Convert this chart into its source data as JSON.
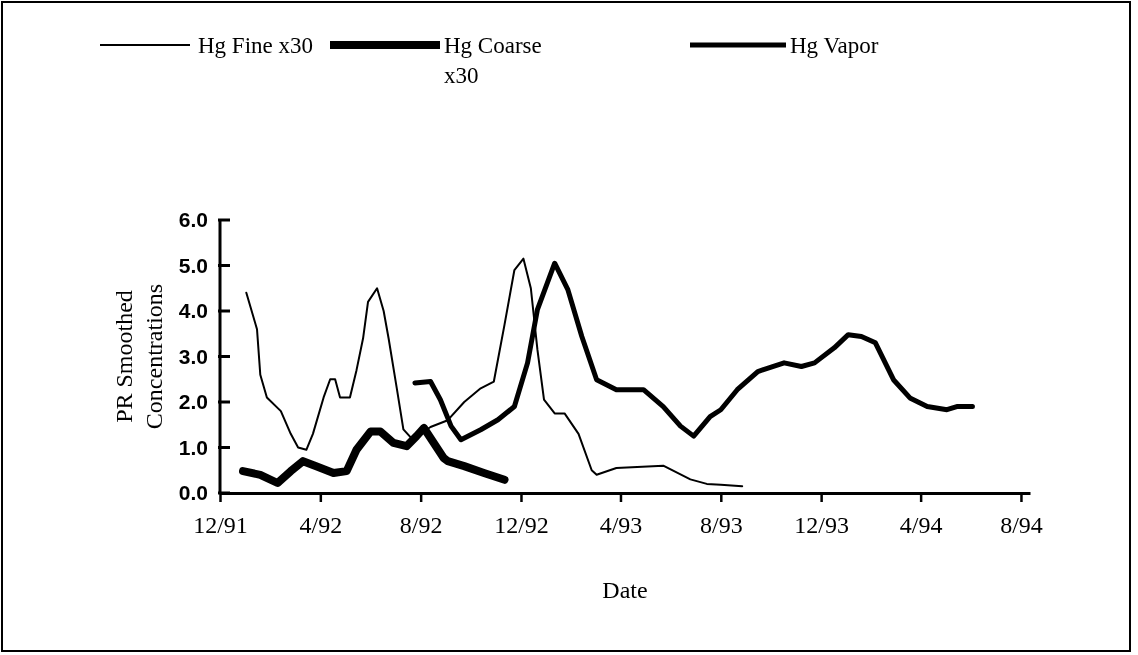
{
  "chart_data": {
    "type": "line",
    "xlabel": "Date",
    "ylabel": "PR Smoothed Concentrations",
    "xlim": [
      "1991-12-01",
      "1994-08-12"
    ],
    "xticks": [
      {
        "value": "1991-12-01",
        "label": "12/91"
      },
      {
        "value": "1992-04-01",
        "label": "4/92"
      },
      {
        "value": "1992-08-01",
        "label": "8/92"
      },
      {
        "value": "1992-12-01",
        "label": "12/92"
      },
      {
        "value": "1993-04-01",
        "label": "4/93"
      },
      {
        "value": "1993-08-01",
        "label": "8/93"
      },
      {
        "value": "1993-12-01",
        "label": "12/93"
      },
      {
        "value": "1994-04-01",
        "label": "4/94"
      },
      {
        "value": "1994-08-01",
        "label": "8/94"
      }
    ],
    "ylim": [
      0,
      6
    ],
    "yticks": [
      {
        "value": 0,
        "label": "0.0"
      },
      {
        "value": 1,
        "label": "1.0"
      },
      {
        "value": 2,
        "label": "2.0"
      },
      {
        "value": 3,
        "label": "3.0"
      },
      {
        "value": 4,
        "label": "4.0"
      },
      {
        "value": 5,
        "label": "5.0"
      },
      {
        "value": 6,
        "label": "6.0"
      }
    ],
    "grid": false,
    "legend": "top",
    "marker": "none",
    "line_style": "solid",
    "series": [
      {
        "name": "Hg Fine x30",
        "color": "#000000",
        "x": [
          "1992-01-02",
          "1992-01-15",
          "1992-01-19",
          "1992-01-27",
          "1992-02-13",
          "1992-02-25",
          "1992-03-05",
          "1992-03-15",
          "1992-03-23",
          "1992-04-05",
          "1992-04-13",
          "1992-04-19",
          "1992-04-25",
          "1992-05-07",
          "1992-05-15",
          "1992-05-23",
          "1992-05-29",
          "1992-06-09",
          "1992-06-17",
          "1992-06-23",
          "1992-07-03",
          "1992-07-11",
          "1992-07-21",
          "1992-08-09",
          "1992-08-13",
          "1992-09-03",
          "1992-09-23",
          "1992-10-13",
          "1992-10-29",
          "1992-11-11",
          "1992-11-23",
          "1992-12-04",
          "1992-12-13",
          "1992-12-21",
          "1992-12-29",
          "1993-01-11",
          "1993-01-23",
          "1993-02-09",
          "1993-02-25",
          "1993-03-03",
          "1993-03-27",
          "1993-05-23",
          "1993-06-25",
          "1993-07-15",
          "1993-08-01",
          "1993-08-27"
        ],
        "values": [
          4.4,
          3.6,
          2.6,
          2.1,
          1.8,
          1.3,
          1.0,
          0.95,
          1.3,
          2.1,
          2.5,
          2.5,
          2.1,
          2.1,
          2.7,
          3.4,
          4.2,
          4.5,
          4.0,
          3.4,
          2.3,
          1.4,
          1.2,
          1.4,
          1.45,
          1.6,
          2.0,
          2.3,
          2.45,
          3.7,
          4.9,
          5.15,
          4.5,
          3.15,
          2.05,
          1.75,
          1.75,
          1.3,
          0.5,
          0.4,
          0.55,
          0.6,
          0.3,
          0.2,
          0.18,
          0.15
        ]
      },
      {
        "name": "Hg Coarse x30",
        "color": "#000000",
        "x": [
          "1991-12-29",
          "1992-01-19",
          "1992-02-09",
          "1992-02-25",
          "1992-03-11",
          "1992-03-27",
          "1992-04-17",
          "1992-05-03",
          "1992-05-15",
          "1992-06-01",
          "1992-06-13",
          "1992-06-29",
          "1992-07-15",
          "1992-07-27",
          "1992-08-05",
          "1992-08-17",
          "1992-08-29",
          "1992-09-03",
          "1992-09-23",
          "1992-10-17",
          "1992-11-11"
        ],
        "values": [
          0.48,
          0.4,
          0.22,
          0.48,
          0.7,
          0.59,
          0.44,
          0.48,
          0.95,
          1.35,
          1.35,
          1.1,
          1.03,
          1.25,
          1.43,
          1.1,
          0.77,
          0.7,
          0.59,
          0.44,
          0.29
        ]
      },
      {
        "name": "Hg Vapor",
        "color": "#000000",
        "x": [
          "1992-07-25",
          "1992-08-13",
          "1992-08-25",
          "1992-09-07",
          "1992-09-19",
          "1992-10-13",
          "1992-11-03",
          "1992-11-23",
          "1992-12-09",
          "1992-12-21",
          "1993-01-11",
          "1993-01-27",
          "1993-02-13",
          "1993-03-03",
          "1993-03-27",
          "1993-04-29",
          "1993-05-23",
          "1993-06-13",
          "1993-06-29",
          "1993-07-19",
          "1993-08-01",
          "1993-08-21",
          "1993-09-15",
          "1993-10-17",
          "1993-11-07",
          "1993-11-23",
          "1993-12-17",
          "1994-01-03",
          "1994-01-19",
          "1994-02-05",
          "1994-02-27",
          "1994-03-19",
          "1994-04-09",
          "1994-05-03",
          "1994-05-15",
          "1994-06-03"
        ],
        "values": [
          2.42,
          2.45,
          2.05,
          1.47,
          1.17,
          1.39,
          1.61,
          1.9,
          2.86,
          4.03,
          5.05,
          4.47,
          3.44,
          2.49,
          2.27,
          2.27,
          1.9,
          1.47,
          1.25,
          1.68,
          1.83,
          2.27,
          2.67,
          2.86,
          2.78,
          2.86,
          3.19,
          3.48,
          3.44,
          3.3,
          2.49,
          2.09,
          1.9,
          1.83,
          1.9,
          1.9
        ]
      }
    ]
  }
}
